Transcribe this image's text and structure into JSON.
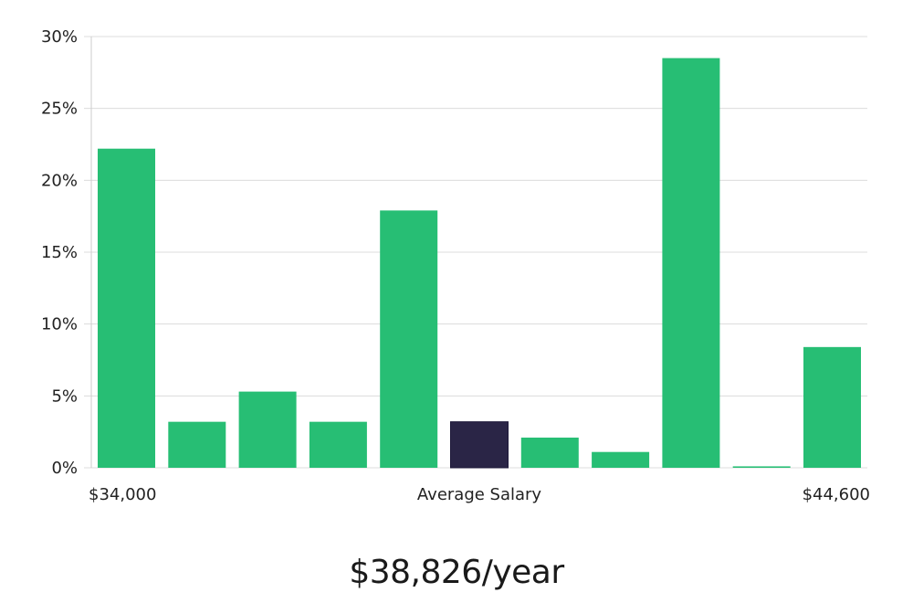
{
  "chart_data": {
    "type": "bar",
    "values": [
      22.2,
      3.2,
      5.3,
      3.2,
      17.9,
      3.2,
      2.1,
      1.1,
      28.5,
      0.1,
      8.4
    ],
    "highlight_index": 5,
    "ylim": [
      0,
      30
    ],
    "y_ticks": [
      0,
      5,
      10,
      15,
      20,
      25,
      30
    ],
    "y_tick_suffix": "%",
    "x_min_label": "$34,000",
    "x_center_label": "Average Salary",
    "x_max_label": "$44,600",
    "colors": {
      "bar": "#27be74",
      "highlight": "#2a2546",
      "grid": "#dcdcdc",
      "axis": "#cccccc"
    },
    "grid": true
  },
  "headline": "$38,826/year"
}
